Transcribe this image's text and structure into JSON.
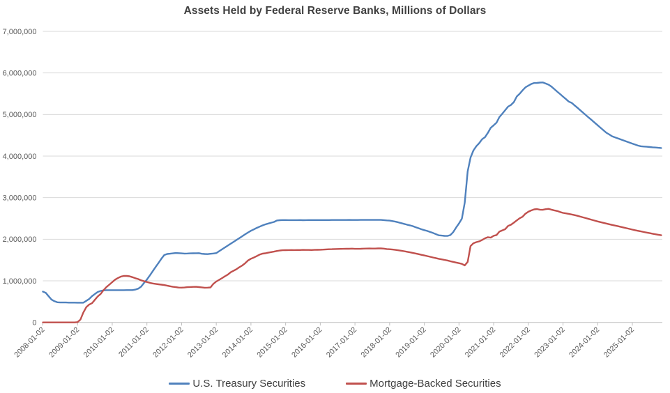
{
  "chart_data": {
    "type": "line",
    "title": "Assets Held by Federal Reserve Banks, Millions of Dollars",
    "xlabel": "",
    "ylabel": "",
    "unit": "millions of dollars",
    "ylim": [
      0,
      7000000
    ],
    "y_ticks": [
      0,
      1000000,
      2000000,
      3000000,
      4000000,
      5000000,
      6000000,
      7000000
    ],
    "x_tick_labels": [
      "2008-01-02",
      "2009-01-02",
      "2010-01-02",
      "2011-01-02",
      "2012-01-02",
      "2013-01-02",
      "2014-01-02",
      "2015-01-02",
      "2016-01-02",
      "2017-01-02",
      "2018-01-02",
      "2019-01-02",
      "2020-01-02",
      "2021-01-02",
      "2022-01-02",
      "2023-01-02",
      "2024-01-02",
      "2025-01-02"
    ],
    "x_start": "2008-01",
    "x_interval": "monthly",
    "grid": "horizontal",
    "legend_position": "bottom",
    "colors": {
      "grid": "#D9D9D9",
      "axis_line": "#BFBFBF",
      "axis_text": "#595959",
      "title_text": "#404040",
      "legend_text": "#404040",
      "background": "#FFFFFF"
    },
    "series": [
      {
        "id": "treasury",
        "name": "U.S. Treasury Securities",
        "color": "#4F81BD",
        "values": [
          741000,
          713000,
          629000,
          549000,
          510000,
          484000,
          479000,
          479000,
          480000,
          476000,
          476000,
          476000,
          475000,
          475000,
          475000,
          517000,
          563000,
          631000,
          684000,
          733000,
          757000,
          771000,
          776000,
          776000,
          776000,
          776000,
          776000,
          776000,
          776000,
          777000,
          777000,
          777000,
          790000,
          812000,
          860000,
          950000,
          1030000,
          1130000,
          1230000,
          1330000,
          1430000,
          1530000,
          1620000,
          1646000,
          1652000,
          1660000,
          1669000,
          1665000,
          1660000,
          1656000,
          1658000,
          1660000,
          1662000,
          1664000,
          1666000,
          1650000,
          1645000,
          1643000,
          1650000,
          1657000,
          1668000,
          1713000,
          1758000,
          1803000,
          1848000,
          1893000,
          1938000,
          1983000,
          2028000,
          2073000,
          2118000,
          2163000,
          2203000,
          2238000,
          2273000,
          2303000,
          2333000,
          2358000,
          2378000,
          2398000,
          2417000,
          2451000,
          2458000,
          2461000,
          2461000,
          2460000,
          2460000,
          2460000,
          2460000,
          2461000,
          2459000,
          2460000,
          2462000,
          2462000,
          2462000,
          2462000,
          2461000,
          2461000,
          2461000,
          2461000,
          2463000,
          2463000,
          2463000,
          2464000,
          2464000,
          2464000,
          2465000,
          2464000,
          2464000,
          2464000,
          2465000,
          2465000,
          2465000,
          2465000,
          2465000,
          2465000,
          2466000,
          2466000,
          2460000,
          2454000,
          2448000,
          2436000,
          2424000,
          2406000,
          2388000,
          2370000,
          2352000,
          2334000,
          2316000,
          2290000,
          2266000,
          2240000,
          2219000,
          2200000,
          2175000,
          2151000,
          2124000,
          2095000,
          2088000,
          2082000,
          2080000,
          2100000,
          2170000,
          2281000,
          2380000,
          2497000,
          2880000,
          3634000,
          3963000,
          4135000,
          4238000,
          4310000,
          4406000,
          4455000,
          4560000,
          4680000,
          4741000,
          4805000,
          4938000,
          5020000,
          5105000,
          5190000,
          5231000,
          5300000,
          5433000,
          5500000,
          5580000,
          5652000,
          5695000,
          5733000,
          5758000,
          5760000,
          5768000,
          5771000,
          5745000,
          5718000,
          5671000,
          5611000,
          5551000,
          5491000,
          5431000,
          5371000,
          5311000,
          5281000,
          5221000,
          5161000,
          5101000,
          5041000,
          4981000,
          4921000,
          4861000,
          4801000,
          4741000,
          4681000,
          4621000,
          4561000,
          4521000,
          4476000,
          4451000,
          4426000,
          4401000,
          4376000,
          4351000,
          4326000,
          4301000,
          4276000,
          4251000,
          4236000,
          4230000,
          4224000,
          4218000,
          4212000,
          4206000,
          4200000,
          4195000
        ]
      },
      {
        "id": "mbs",
        "name": "Mortgage-Backed Securities",
        "color": "#C0504D",
        "values": [
          0,
          0,
          0,
          0,
          0,
          0,
          0,
          0,
          0,
          0,
          0,
          0,
          7000,
          69000,
          237000,
          366000,
          427000,
          462000,
          545000,
          625000,
          685000,
          776000,
          852000,
          908000,
          969000,
          1029000,
          1069000,
          1103000,
          1117000,
          1118000,
          1110000,
          1087000,
          1062000,
          1043000,
          1012000,
          992000,
          972000,
          952000,
          937000,
          927000,
          917000,
          909000,
          899000,
          885000,
          870000,
          857000,
          848000,
          838000,
          836000,
          840000,
          848000,
          852000,
          854000,
          856000,
          850000,
          843000,
          835000,
          837000,
          842000,
          927000,
          983000,
          1024000,
          1066000,
          1109000,
          1150000,
          1206000,
          1242000,
          1281000,
          1327000,
          1369000,
          1423000,
          1490000,
          1532000,
          1561000,
          1594000,
          1631000,
          1654000,
          1662000,
          1677000,
          1691000,
          1702000,
          1717000,
          1730000,
          1737000,
          1738000,
          1740000,
          1741000,
          1740000,
          1741000,
          1742000,
          1744000,
          1743000,
          1743000,
          1742000,
          1744000,
          1747000,
          1748000,
          1751000,
          1757000,
          1759000,
          1761000,
          1764000,
          1766000,
          1768000,
          1770000,
          1771000,
          1772000,
          1774000,
          1770000,
          1769000,
          1772000,
          1774000,
          1776000,
          1778000,
          1777000,
          1776000,
          1780000,
          1779000,
          1775000,
          1765000,
          1759000,
          1753000,
          1744000,
          1735000,
          1725000,
          1713000,
          1699000,
          1686000,
          1672000,
          1658000,
          1642000,
          1626000,
          1610000,
          1595000,
          1579000,
          1562000,
          1546000,
          1530000,
          1516000,
          1503000,
          1490000,
          1472000,
          1456000,
          1440000,
          1424000,
          1408000,
          1371000,
          1457000,
          1835000,
          1904000,
          1931000,
          1949000,
          1982000,
          2023000,
          2050000,
          2039000,
          2083000,
          2101000,
          2183000,
          2213000,
          2243000,
          2321000,
          2350000,
          2399000,
          2453000,
          2506000,
          2540000,
          2614000,
          2662000,
          2693000,
          2718000,
          2727000,
          2711000,
          2708000,
          2724000,
          2731000,
          2711000,
          2695000,
          2679000,
          2654000,
          2634000,
          2622000,
          2611000,
          2596000,
          2580000,
          2564000,
          2544000,
          2525000,
          2507000,
          2487000,
          2467000,
          2448000,
          2429000,
          2412000,
          2395000,
          2378000,
          2361000,
          2345000,
          2330000,
          2314000,
          2297000,
          2281000,
          2265000,
          2249000,
          2233000,
          2217000,
          2202000,
          2188000,
          2174000,
          2160000,
          2147000,
          2133000,
          2120000,
          2108000,
          2096000
        ]
      }
    ]
  }
}
